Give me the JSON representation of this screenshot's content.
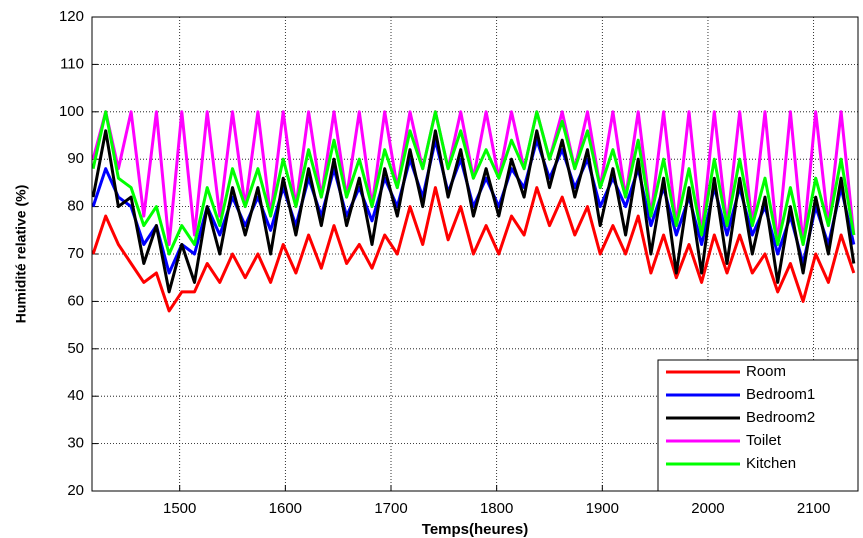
{
  "chart_data": {
    "type": "line",
    "xlabel": "Temps(heures)",
    "ylabel": "Humidité relative (%)",
    "xlim": [
      1417,
      2142
    ],
    "ylim": [
      20,
      120
    ],
    "xticks": [
      1500,
      1600,
      1700,
      1800,
      1900,
      2000,
      2100
    ],
    "yticks": [
      20,
      30,
      40,
      50,
      60,
      70,
      80,
      90,
      100,
      110,
      120
    ],
    "grid": true,
    "legend": "lower right",
    "x": [
      1418,
      1430,
      1442,
      1454,
      1466,
      1478,
      1490,
      1502,
      1514,
      1526,
      1538,
      1550,
      1562,
      1574,
      1586,
      1598,
      1610,
      1622,
      1634,
      1646,
      1658,
      1670,
      1682,
      1694,
      1706,
      1718,
      1730,
      1742,
      1754,
      1766,
      1778,
      1790,
      1802,
      1814,
      1826,
      1838,
      1850,
      1862,
      1874,
      1886,
      1898,
      1910,
      1922,
      1934,
      1946,
      1958,
      1970,
      1982,
      1994,
      2006,
      2018,
      2030,
      2042,
      2054,
      2066,
      2078,
      2090,
      2102,
      2114,
      2126,
      2138
    ],
    "series": [
      {
        "name": "Toilet",
        "color": "#ff00ff",
        "values": [
          90,
          100,
          88,
          100,
          78,
          100,
          72,
          100,
          74,
          100,
          78,
          100,
          80,
          100,
          78,
          100,
          80,
          100,
          82,
          100,
          82,
          100,
          80,
          100,
          84,
          100,
          88,
          100,
          88,
          100,
          86,
          100,
          86,
          100,
          88,
          100,
          90,
          100,
          88,
          100,
          84,
          100,
          82,
          100,
          78,
          100,
          76,
          100,
          74,
          100,
          76,
          100,
          76,
          100,
          72,
          100,
          72,
          100,
          76,
          100,
          74
        ]
      },
      {
        "name": "Room",
        "color": "#ff0000",
        "values": [
          70,
          78,
          72,
          68,
          64,
          66,
          58,
          62,
          62,
          68,
          64,
          70,
          65,
          70,
          64,
          72,
          66,
          74,
          67,
          76,
          68,
          72,
          67,
          74,
          70,
          80,
          72,
          84,
          73,
          80,
          70,
          76,
          70,
          78,
          74,
          84,
          76,
          82,
          74,
          80,
          70,
          76,
          70,
          78,
          66,
          74,
          65,
          72,
          64,
          74,
          66,
          74,
          66,
          70,
          62,
          68,
          60,
          70,
          64,
          74,
          66
        ]
      },
      {
        "name": "Bedroom1",
        "color": "#0000ff",
        "values": [
          80,
          88,
          82,
          80,
          72,
          76,
          66,
          72,
          70,
          80,
          74,
          82,
          76,
          82,
          75,
          84,
          76,
          86,
          78,
          88,
          78,
          84,
          77,
          86,
          80,
          90,
          82,
          94,
          83,
          90,
          80,
          86,
          80,
          88,
          84,
          94,
          86,
          92,
          84,
          90,
          80,
          86,
          80,
          88,
          76,
          84,
          74,
          82,
          72,
          84,
          74,
          84,
          74,
          80,
          70,
          78,
          68,
          80,
          72,
          84,
          72
        ]
      },
      {
        "name": "Bedroom2",
        "color": "#000000",
        "values": [
          82,
          96,
          80,
          82,
          68,
          76,
          62,
          72,
          64,
          80,
          70,
          84,
          74,
          84,
          70,
          86,
          74,
          88,
          76,
          90,
          76,
          86,
          72,
          88,
          78,
          92,
          80,
          96,
          82,
          92,
          78,
          88,
          78,
          90,
          82,
          96,
          84,
          94,
          82,
          92,
          76,
          88,
          74,
          90,
          70,
          86,
          66,
          84,
          66,
          86,
          68,
          86,
          70,
          82,
          64,
          80,
          66,
          82,
          70,
          86,
          68
        ]
      },
      {
        "name": "Kitchen",
        "color": "#00ff00",
        "values": [
          88,
          100,
          86,
          84,
          76,
          80,
          70,
          76,
          72,
          84,
          76,
          88,
          80,
          88,
          78,
          90,
          80,
          92,
          82,
          94,
          82,
          90,
          80,
          92,
          84,
          96,
          88,
          100,
          88,
          96,
          86,
          92,
          86,
          94,
          88,
          100,
          90,
          98,
          88,
          96,
          84,
          92,
          82,
          94,
          78,
          90,
          76,
          88,
          74,
          90,
          76,
          90,
          76,
          86,
          72,
          84,
          72,
          86,
          76,
          90,
          74
        ]
      }
    ]
  }
}
